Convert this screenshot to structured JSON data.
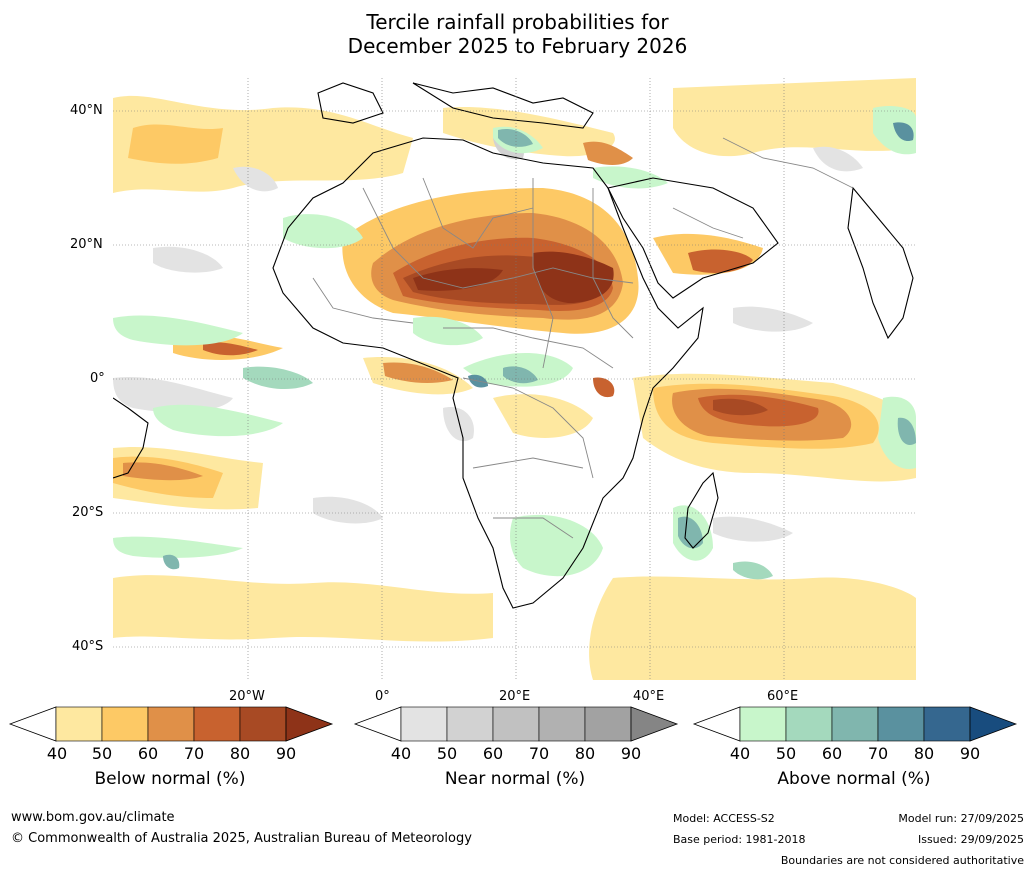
{
  "title": {
    "line1": "Tercile rainfall probabilities for",
    "line2": "December 2025 to February 2026"
  },
  "map": {
    "lat_labels": [
      "40°N",
      "20°N",
      "0°",
      "20°S",
      "40°S"
    ],
    "lon_labels": [
      "20°W",
      "0°",
      "20°E",
      "40°E",
      "60°E"
    ]
  },
  "colorbars": {
    "ticks": [
      "40",
      "50",
      "60",
      "70",
      "80",
      "90"
    ],
    "below": {
      "title": "Below normal (%)",
      "colors": [
        "#ffffff",
        "#fee8a0",
        "#fdc965",
        "#e09048",
        "#c8622f",
        "#a84a24",
        "#8e3318"
      ]
    },
    "near": {
      "title": "Near normal (%)",
      "colors": [
        "#ffffff",
        "#e3e3e3",
        "#d2d2d2",
        "#c1c1c1",
        "#b1b1b1",
        "#a2a2a2",
        "#858585"
      ]
    },
    "above": {
      "title": "Above normal (%)",
      "colors": [
        "#ffffff",
        "#c8f6cb",
        "#a4d9bd",
        "#80b6ae",
        "#5a919f",
        "#35678f",
        "#184c7e"
      ]
    }
  },
  "footer": {
    "website": "www.bom.gov.au/climate",
    "copyright": "© Commonwealth of Australia 2025, Australian Bureau of Meteorology",
    "model": "Model: ACCESS-S2",
    "base_period": "Base period: 1981-2018",
    "model_run": "Model run: 27/09/2025",
    "issued": "Issued: 29/09/2025",
    "disclaimer": "Boundaries are not considered authoritative"
  }
}
